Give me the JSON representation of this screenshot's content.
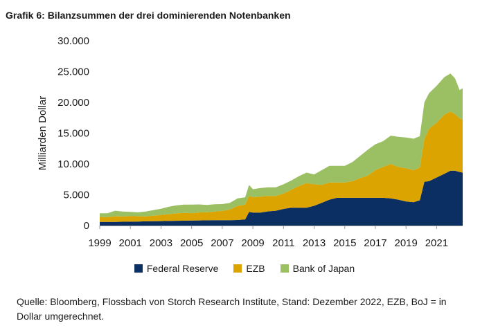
{
  "title": "Grafik 6: Bilanzsummen der drei dominierenden Notenbanken",
  "source": "Quelle: Bloomberg, Flossbach von Storch Research Institute, Stand: Dezember 2022, EZB, BoJ = in Dollar umgerechnet.",
  "colors": {
    "fed": "#0b2f63",
    "ezb": "#dca400",
    "boj": "#9bbf63",
    "axis": "#999999"
  },
  "chart_data": {
    "type": "area",
    "stacked": true,
    "title": "Grafik 6: Bilanzsummen der drei dominierenden Notenbanken",
    "xlabel": "",
    "ylabel": "Milliarden Dollar",
    "ylim": [
      0,
      30000
    ],
    "xlim": [
      1999,
      2022.7
    ],
    "yticks": [
      0,
      5000,
      10000,
      15000,
      20000,
      25000,
      30000
    ],
    "ytick_labels": [
      "0",
      "5.000",
      "10.000",
      "15.000",
      "20.000",
      "25.000",
      "30.000"
    ],
    "xticks": [
      1999,
      2001,
      2003,
      2005,
      2007,
      2009,
      2011,
      2013,
      2015,
      2017,
      2019,
      2021
    ],
    "xtick_labels": [
      "1999",
      "2001",
      "2003",
      "2005",
      "2007",
      "2009",
      "2011",
      "2013",
      "2015",
      "2017",
      "2019",
      "2021"
    ],
    "grid": false,
    "legend_position": "bottom",
    "x": [
      1999,
      1999.5,
      2000,
      2000.5,
      2001,
      2001.5,
      2002,
      2002.5,
      2003,
      2003.5,
      2004,
      2004.5,
      2005,
      2005.5,
      2006,
      2006.5,
      2007,
      2007.5,
      2008,
      2008.5,
      2008.75,
      2009,
      2009.5,
      2010,
      2010.5,
      2011,
      2011.5,
      2012,
      2012.5,
      2013,
      2013.5,
      2014,
      2014.5,
      2015,
      2015.5,
      2016,
      2016.5,
      2017,
      2017.5,
      2018,
      2018.5,
      2019,
      2019.5,
      2019.9,
      2020.2,
      2020.5,
      2021,
      2021.5,
      2021.9,
      2022.2,
      2022.5,
      2022.7
    ],
    "series": [
      {
        "name": "Federal Reserve",
        "values": [
          600,
          600,
          600,
          620,
          630,
          650,
          680,
          700,
          720,
          740,
          770,
          790,
          810,
          830,
          850,
          860,
          880,
          880,
          900,
          1000,
          2200,
          2100,
          2100,
          2300,
          2400,
          2700,
          2900,
          2900,
          2900,
          3200,
          3700,
          4200,
          4500,
          4500,
          4500,
          4500,
          4500,
          4500,
          4500,
          4400,
          4200,
          3900,
          3800,
          4100,
          7100,
          7200,
          7800,
          8400,
          8900,
          8900,
          8700,
          8600
        ]
      },
      {
        "name": "EZB",
        "values": [
          800,
          750,
          900,
          850,
          900,
          850,
          800,
          900,
          1000,
          1100,
          1200,
          1250,
          1200,
          1300,
          1300,
          1400,
          1500,
          1700,
          2300,
          2400,
          2600,
          2500,
          2600,
          2500,
          2400,
          2500,
          2900,
          3500,
          4000,
          3500,
          2900,
          2800,
          2500,
          2500,
          2700,
          3200,
          3600,
          4500,
          5000,
          5600,
          5300,
          5400,
          5200,
          5300,
          7000,
          8500,
          8900,
          9600,
          9600,
          9200,
          8700,
          8600
        ]
      },
      {
        "name": "Bank of Japan",
        "values": [
          600,
          650,
          900,
          800,
          700,
          650,
          800,
          900,
          1000,
          1200,
          1300,
          1350,
          1400,
          1300,
          1200,
          1200,
          1100,
          1100,
          1200,
          1200,
          1800,
          1300,
          1400,
          1400,
          1400,
          1500,
          1500,
          1600,
          1700,
          1600,
          2400,
          2700,
          2700,
          2700,
          3100,
          3600,
          4200,
          4200,
          4200,
          4600,
          4900,
          5000,
          5100,
          5100,
          5900,
          5800,
          6000,
          6100,
          6200,
          5800,
          4600,
          5100
        ]
      }
    ]
  }
}
